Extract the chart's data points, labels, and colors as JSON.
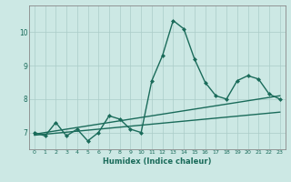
{
  "xlabel": "Humidex (Indice chaleur)",
  "ylabel": "",
  "x": [
    0,
    1,
    2,
    3,
    4,
    5,
    6,
    7,
    8,
    9,
    10,
    11,
    12,
    13,
    14,
    15,
    16,
    17,
    18,
    19,
    20,
    21,
    22,
    23
  ],
  "y_main": [
    7.0,
    6.9,
    7.3,
    6.9,
    7.1,
    6.75,
    7.0,
    7.5,
    7.4,
    7.1,
    7.0,
    8.55,
    9.3,
    10.35,
    10.1,
    9.2,
    8.5,
    8.1,
    8.0,
    8.55,
    8.7,
    8.6,
    8.15,
    8.0
  ],
  "y_trend1": [
    6.95,
    7.0,
    7.05,
    7.1,
    7.15,
    7.2,
    7.25,
    7.3,
    7.35,
    7.4,
    7.45,
    7.5,
    7.55,
    7.6,
    7.65,
    7.7,
    7.75,
    7.8,
    7.85,
    7.9,
    7.95,
    8.0,
    8.05,
    8.1
  ],
  "y_trend2": [
    6.92,
    6.95,
    6.98,
    7.01,
    7.04,
    7.07,
    7.1,
    7.13,
    7.16,
    7.19,
    7.22,
    7.25,
    7.28,
    7.31,
    7.34,
    7.37,
    7.4,
    7.43,
    7.46,
    7.49,
    7.52,
    7.55,
    7.58,
    7.61
  ],
  "line_color": "#1a6b5a",
  "bg_color": "#cce8e4",
  "grid_color": "#aaccc8",
  "ylim": [
    6.5,
    10.8
  ],
  "yticks": [
    7,
    8,
    9,
    10
  ],
  "xticks": [
    0,
    1,
    2,
    3,
    4,
    5,
    6,
    7,
    8,
    9,
    10,
    11,
    12,
    13,
    14,
    15,
    16,
    17,
    18,
    19,
    20,
    21,
    22,
    23
  ],
  "marker_size": 2.5,
  "linewidth": 1.0
}
